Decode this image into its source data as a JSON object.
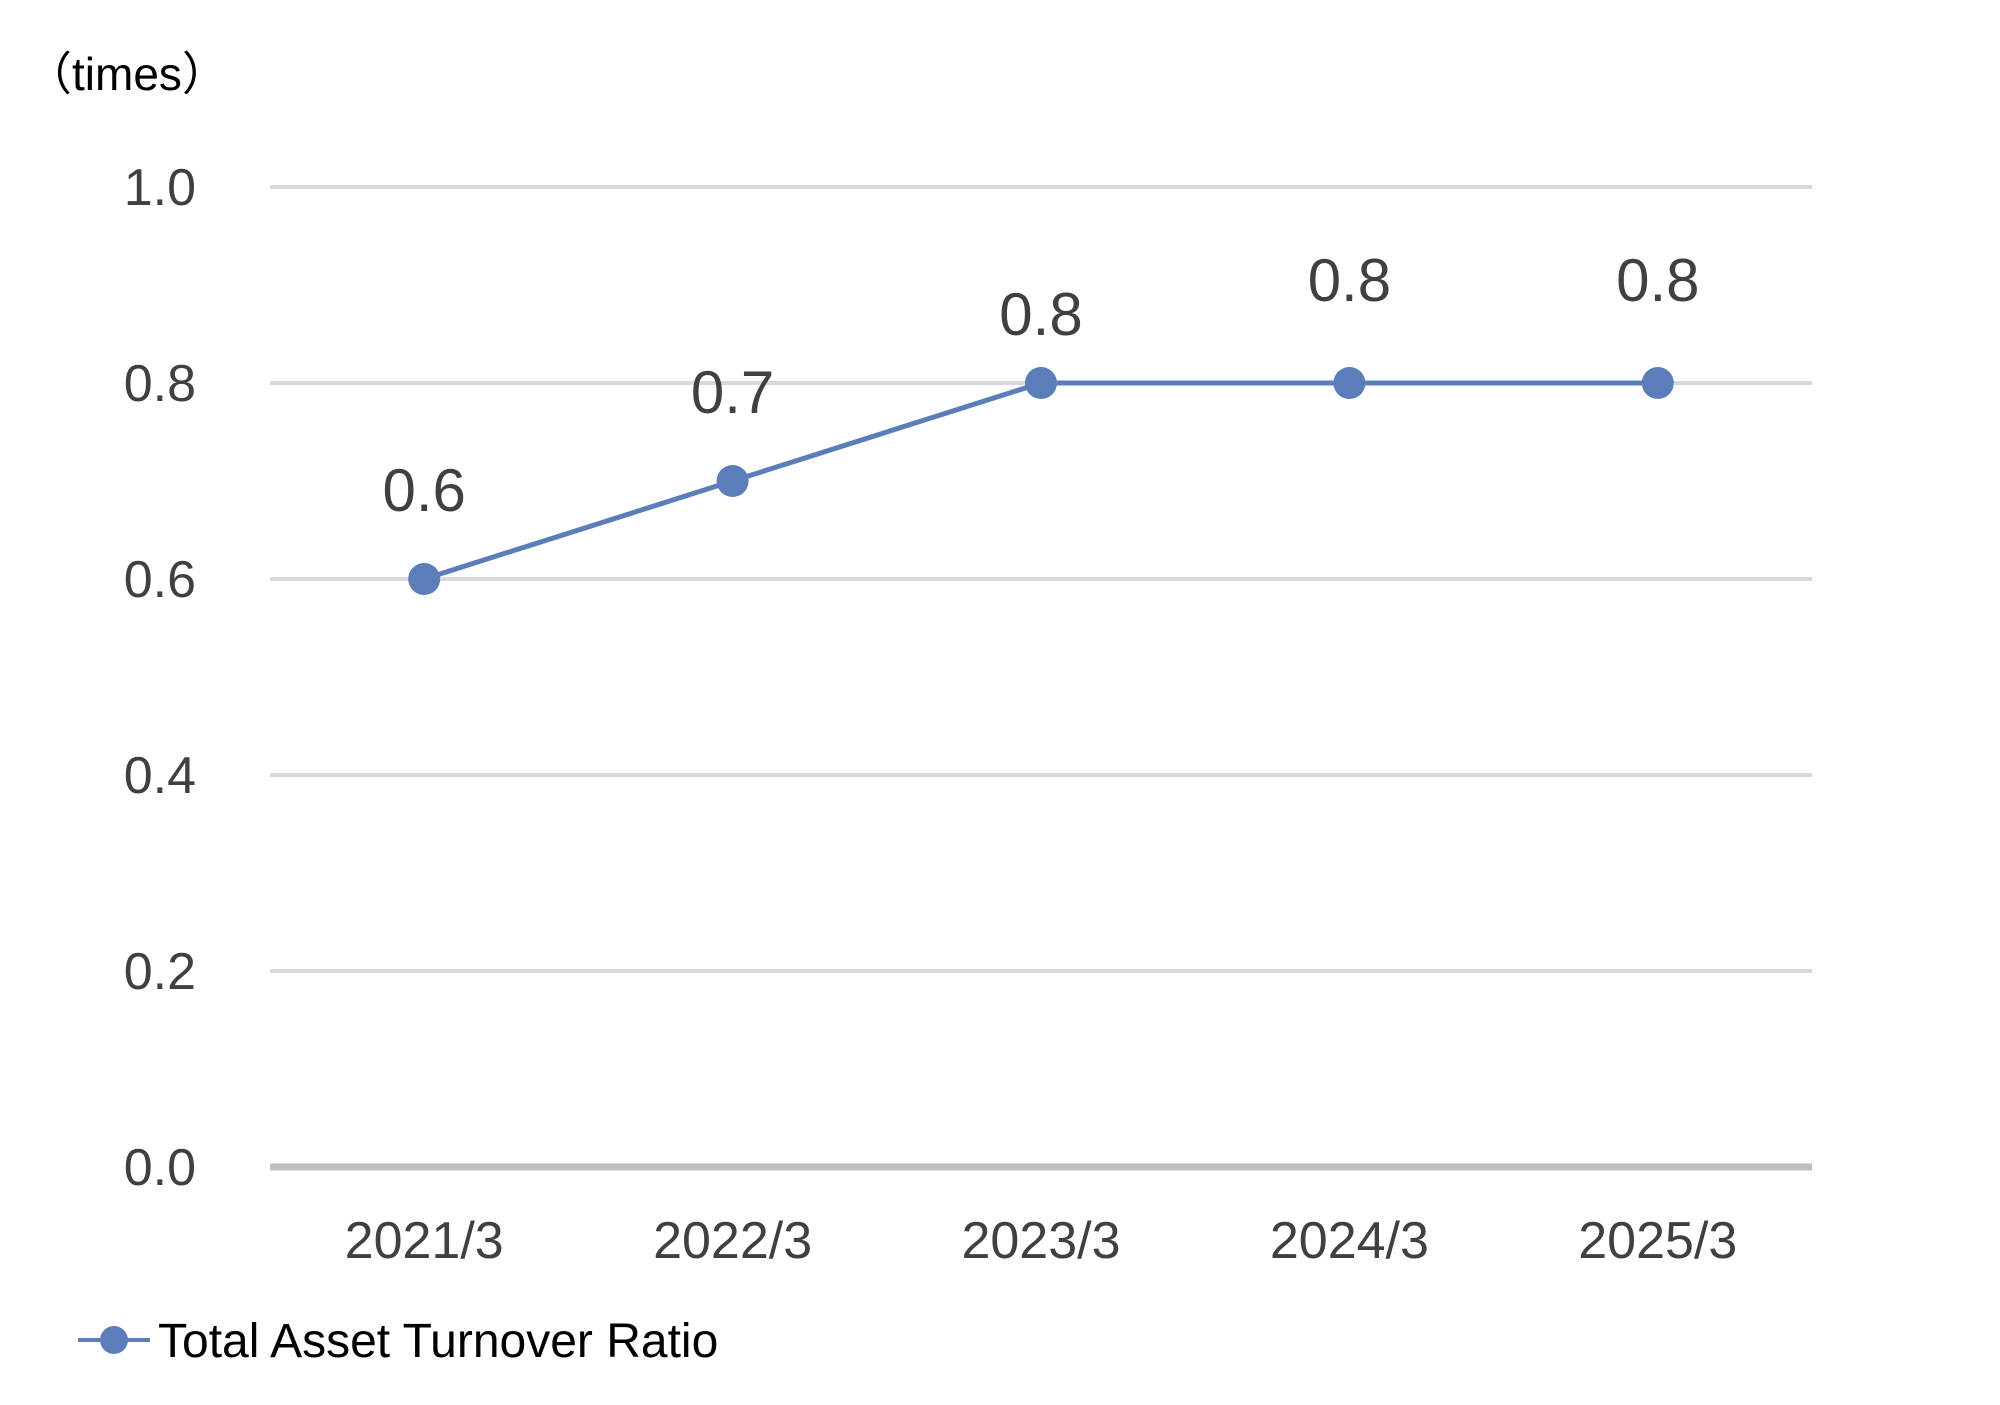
{
  "chart_data": {
    "type": "line",
    "ylabel": "（times）",
    "categories": [
      "2021/3",
      "2022/3",
      "2023/3",
      "2024/3",
      "2025/3"
    ],
    "series": [
      {
        "name": "Total Asset Turnover Ratio",
        "values": [
          0.6,
          0.7,
          0.8,
          0.8,
          0.8
        ],
        "data_labels": [
          "0.6",
          "0.7",
          "0.8",
          "0.8",
          "0.8"
        ],
        "color": "#5B7DB9"
      }
    ],
    "ylim": [
      0.0,
      1.0
    ],
    "yticks": [
      0.0,
      0.2,
      0.4,
      0.6,
      0.8,
      1.0
    ],
    "ytick_labels": [
      "0.0",
      "0.2",
      "0.4",
      "0.6",
      "0.8",
      "1.0"
    ],
    "grid": true,
    "legend_position": "bottom-left"
  },
  "colors": {
    "series": "#5B7DB9",
    "grid": "#D9D9D9",
    "axis": "#BFBFBF",
    "text": "#404040"
  }
}
